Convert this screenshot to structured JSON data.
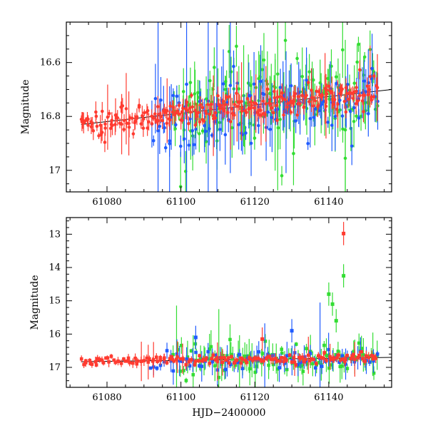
{
  "chart_data": [
    {
      "type": "scatter",
      "panel": "top",
      "xlabel": "",
      "ylabel": "Magnitude",
      "xlim": [
        61069,
        61157
      ],
      "ylim": [
        17.08,
        16.45
      ],
      "xticks": [
        61080,
        61100,
        61120,
        61140
      ],
      "xtick_labels": [
        "61080",
        "61100",
        "61120",
        "61140"
      ],
      "yticks": [
        16.6,
        16.8,
        17.0
      ],
      "ytick_labels": [
        "16.6",
        "16.8",
        "17"
      ],
      "trend_line": {
        "x": [
          61073,
          61157
        ],
        "y": [
          16.83,
          16.7
        ]
      },
      "series": [
        {
          "name": "red",
          "color": "#ff3b30",
          "x_range": [
            61073,
            61153
          ],
          "y_trend": [
            16.83,
            16.71
          ],
          "scatter": 0.025,
          "points": 260
        },
        {
          "name": "blue",
          "color": "#1f5bff",
          "x_range": [
            61092,
            61153
          ],
          "y_trend": [
            16.82,
            16.72
          ],
          "scatter": 0.06,
          "points": 120
        },
        {
          "name": "green",
          "color": "#33dd33",
          "x_range": [
            61098,
            61153
          ],
          "y_trend": [
            16.8,
            16.7
          ],
          "scatter": 0.09,
          "points": 160
        }
      ]
    },
    {
      "type": "scatter",
      "panel": "bottom",
      "xlabel": "HJD−2400000",
      "ylabel": "Magnitude",
      "xlim": [
        61069,
        61157
      ],
      "ylim": [
        17.6,
        12.5
      ],
      "xticks": [
        61080,
        61100,
        61120,
        61140
      ],
      "xtick_labels": [
        "61080",
        "61100",
        "61120",
        "61140"
      ],
      "yticks": [
        13,
        14,
        15,
        16,
        17
      ],
      "ytick_labels": [
        "13",
        "14",
        "15",
        "16",
        "17"
      ],
      "trend_line": {
        "x": [
          61073,
          61157
        ],
        "y": [
          16.83,
          16.7
        ]
      },
      "outliers": [
        {
          "x": 61144,
          "y": 12.98,
          "color": "#ff3b30"
        },
        {
          "x": 61144,
          "y": 14.25,
          "color": "#33dd33"
        },
        {
          "x": 61140,
          "y": 14.8,
          "color": "#33dd33"
        },
        {
          "x": 61141,
          "y": 15.1,
          "color": "#33dd33"
        },
        {
          "x": 61130,
          "y": 15.9,
          "color": "#1f5bff"
        },
        {
          "x": 61104,
          "y": 16.1,
          "color": "#1f5bff"
        },
        {
          "x": 61122,
          "y": 16.15,
          "color": "#ff3b30"
        },
        {
          "x": 61142,
          "y": 15.6,
          "color": "#33dd33"
        }
      ]
    }
  ]
}
